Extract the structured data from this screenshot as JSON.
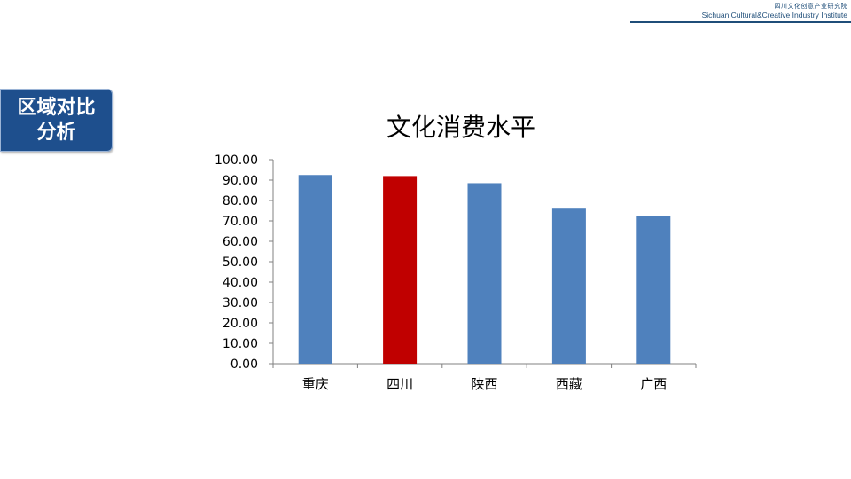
{
  "header": {
    "org_cn": "四川文化创意产业研究院",
    "org_en": "Sichuan Cultural&Creative Industry Institute"
  },
  "section_badge": {
    "line1": "区域对比",
    "line2": "分析"
  },
  "colors": {
    "bar_default": "#4f81bd",
    "bar_highlight": "#c00000",
    "badge_bg": "#1e4f8d",
    "header_text": "#1f4e79",
    "axis": "#808080"
  },
  "chart_data": {
    "type": "bar",
    "title": "文化消费水平",
    "categories": [
      "重庆",
      "四川",
      "陕西",
      "西藏",
      "广西"
    ],
    "values": [
      92.5,
      92.0,
      88.5,
      76.0,
      72.5
    ],
    "highlight_category": "四川",
    "ylim": [
      0,
      100
    ],
    "yticks": [
      "0.00",
      "10.00",
      "20.00",
      "30.00",
      "40.00",
      "50.00",
      "60.00",
      "70.00",
      "80.00",
      "90.00",
      "100.00"
    ],
    "xlabel": "",
    "ylabel": "",
    "grid": false,
    "legend": "none"
  }
}
